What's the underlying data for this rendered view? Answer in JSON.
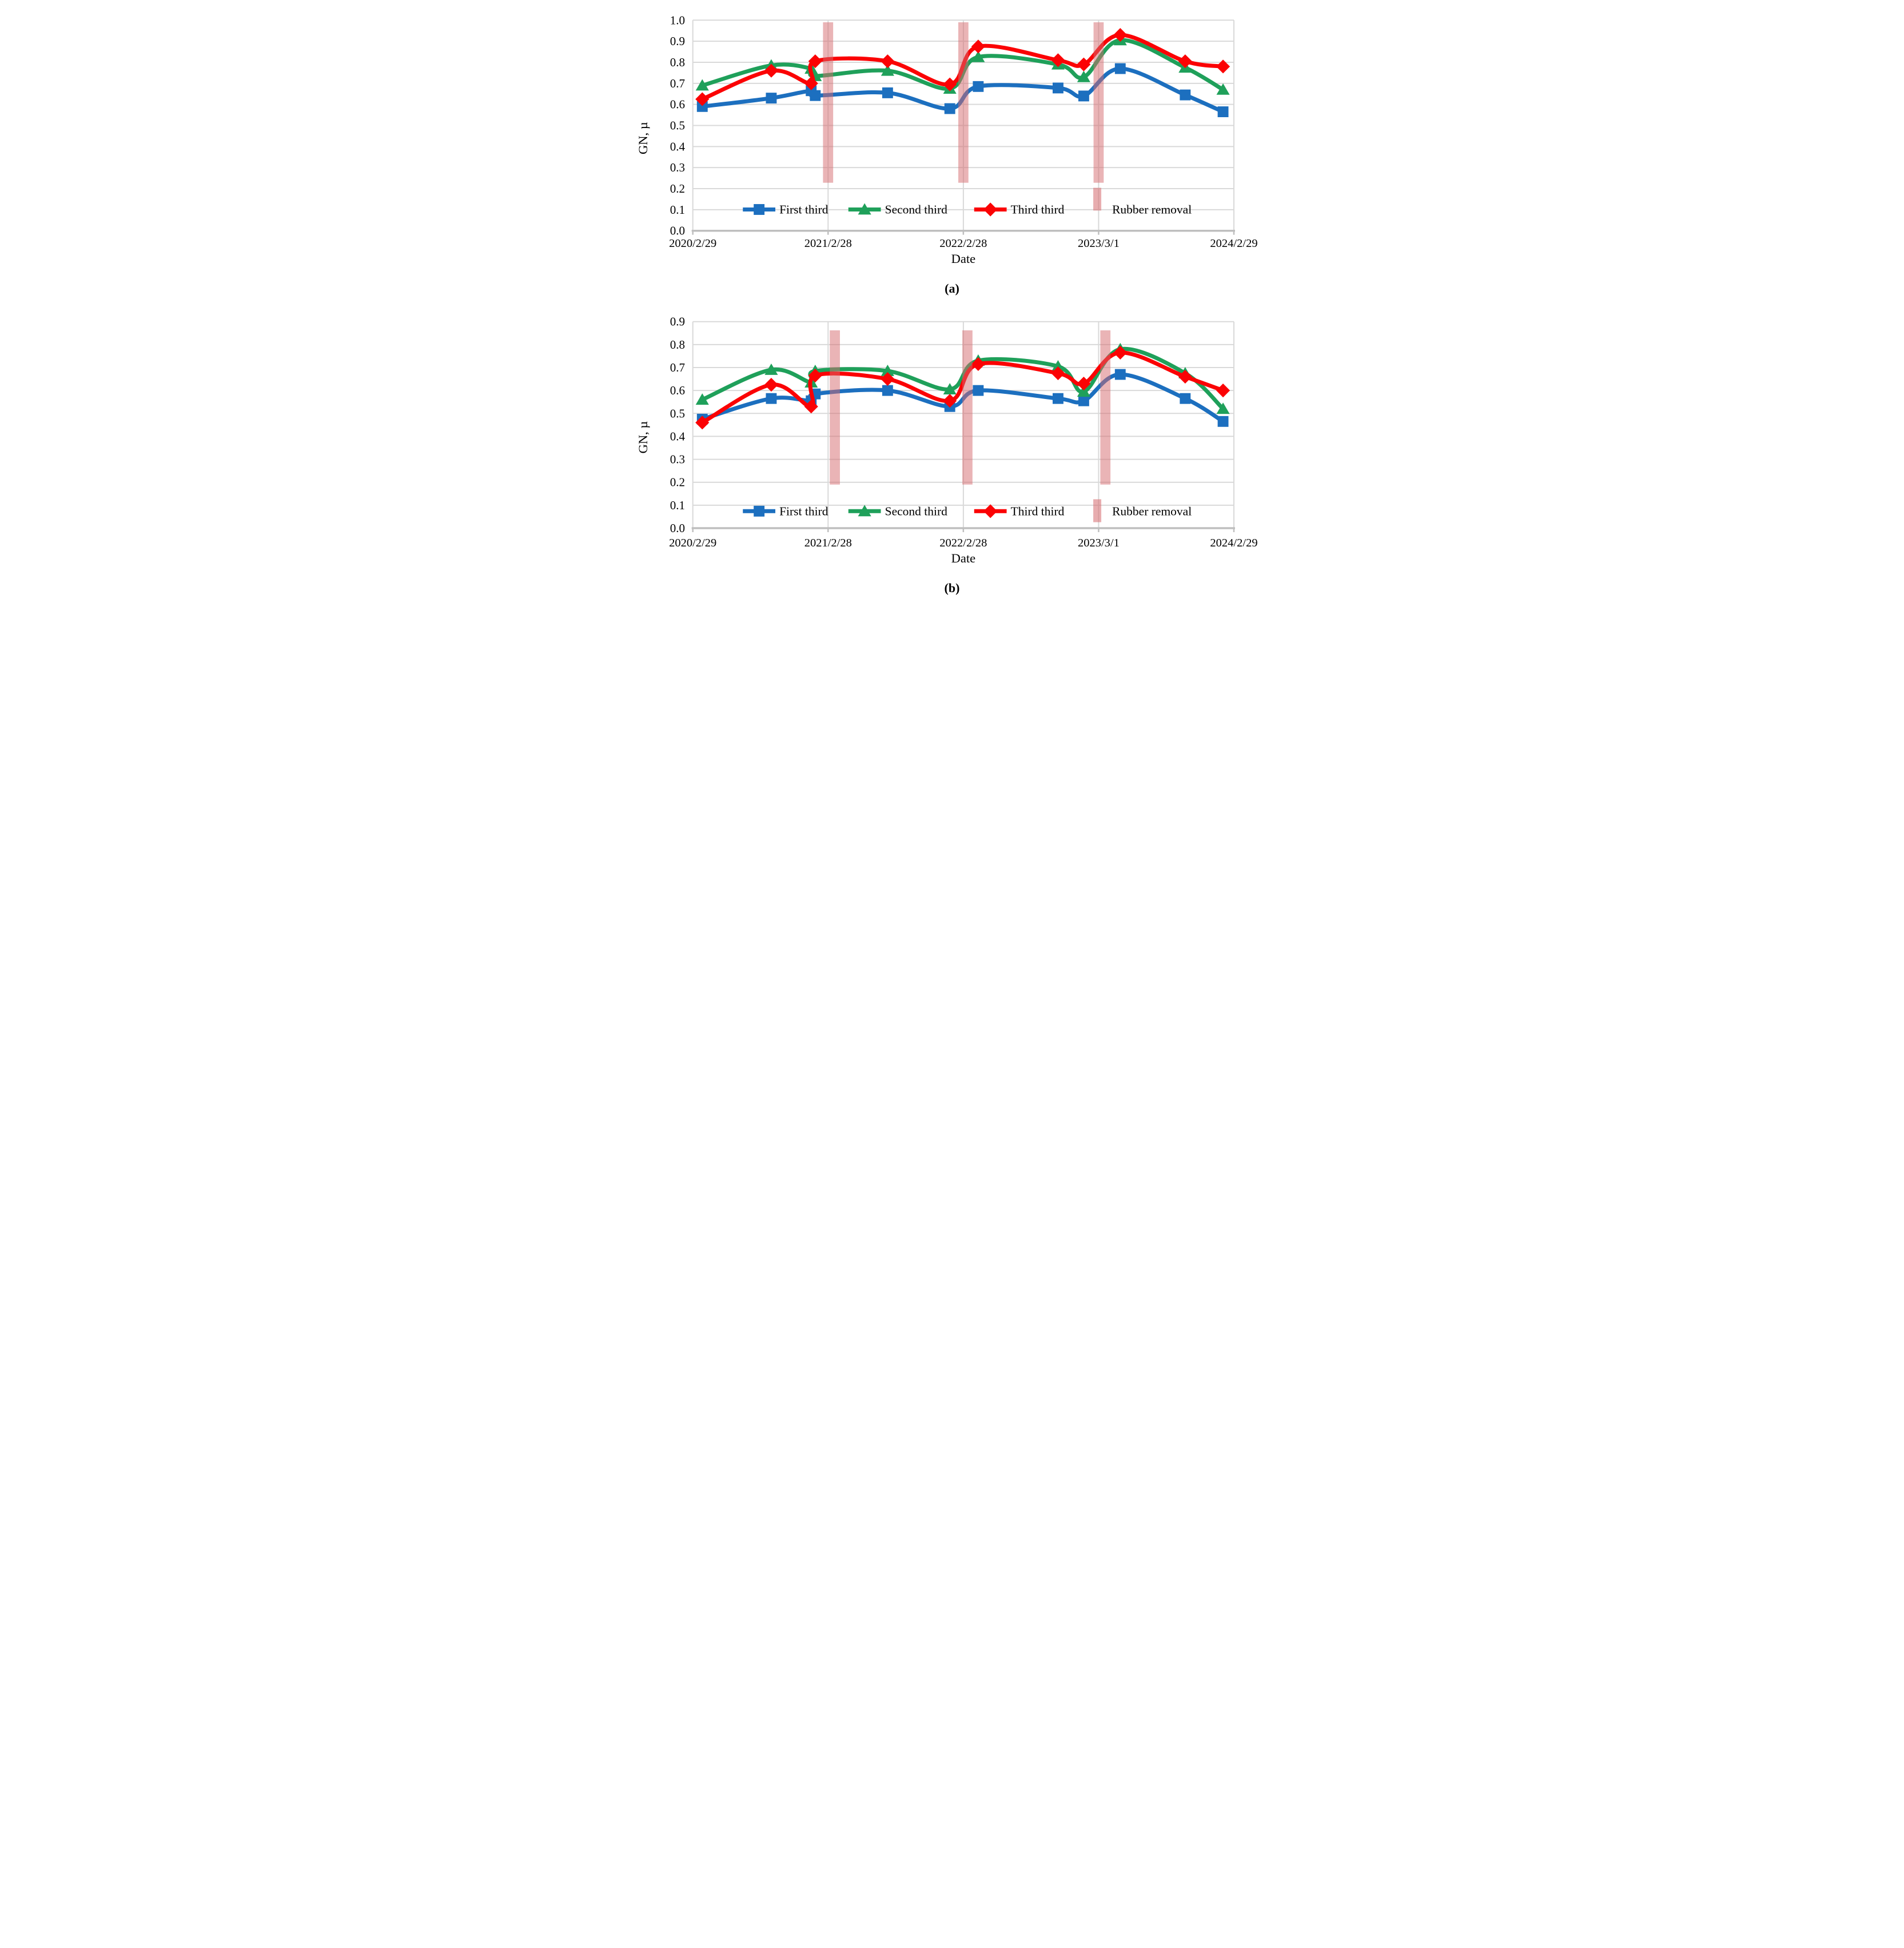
{
  "colors": {
    "blue": "#1C6FBF",
    "green": "#1FA05A",
    "red": "#FB0204",
    "bar_pink": "#D66A6D",
    "grid": "#D9D9D9",
    "axis": "#BFBFBF",
    "text": "#000000"
  },
  "captions": {
    "a": "(a)",
    "b": "(b)"
  },
  "chart_data": [
    {
      "id": "a",
      "type": "line",
      "caption": "(a)",
      "xlabel": "Date",
      "ylabel": "GN, µ",
      "x_unit": "years since 2020/2/29",
      "xlim": [
        0,
        4
      ],
      "ylim": [
        0,
        1.0
      ],
      "x_tick_values": [
        0,
        1,
        2,
        3,
        4
      ],
      "x_tick_labels": [
        "2020/2/29",
        "2021/2/28",
        "2022/2/28",
        "2023/3/1",
        "2024/2/29"
      ],
      "y_tick_labels": [
        "0.0",
        "0.1",
        "0.2",
        "0.3",
        "0.4",
        "0.5",
        "0.6",
        "0.7",
        "0.8",
        "0.9",
        "1.0"
      ],
      "grid": true,
      "legend_position": "inside-bottom",
      "x": [
        0.07,
        0.58,
        0.875,
        0.905,
        1.44,
        1.9,
        2.11,
        2.7,
        2.89,
        3.16,
        3.64,
        3.92
      ],
      "series": [
        {
          "name": "First third",
          "color_key": "blue",
          "marker": "square",
          "y": [
            0.59,
            0.63,
            0.665,
            0.642,
            0.655,
            0.58,
            0.685,
            0.678,
            0.64,
            0.77,
            0.645,
            0.565
          ]
        },
        {
          "name": "Second third",
          "color_key": "green",
          "marker": "triangle",
          "y": [
            0.69,
            0.785,
            0.77,
            0.735,
            0.76,
            0.675,
            0.825,
            0.79,
            0.73,
            0.905,
            0.775,
            0.67
          ]
        },
        {
          "name": "Third third",
          "color_key": "red",
          "marker": "diamond",
          "y": [
            0.625,
            0.76,
            0.7,
            0.805,
            0.805,
            0.695,
            0.875,
            0.81,
            0.79,
            0.93,
            0.805,
            0.78
          ]
        }
      ],
      "removal_bars": {
        "label": "Rubber removal",
        "positions": [
          1.0,
          2.0,
          3.0
        ],
        "width": 0.075,
        "y_bottom": 0.228,
        "y_top": 0.99
      },
      "legend": {
        "text_y": 0.101,
        "bar_center_y": 0.15,
        "bar_half_h": 0.054,
        "items_x": [
          0.37,
          1.15,
          2.08
        ],
        "label_dx": 0.27,
        "bar_x": 2.99,
        "bar_label_x": 3.1
      }
    },
    {
      "id": "b",
      "type": "line",
      "caption": "(b)",
      "xlabel": "Date",
      "ylabel": "GN, µ",
      "x_unit": "years since 2020/2/29",
      "xlim": [
        0,
        4
      ],
      "ylim": [
        0,
        0.9
      ],
      "x_tick_values": [
        0,
        1,
        2,
        3,
        4
      ],
      "x_tick_labels": [
        "2020/2/29",
        "2021/2/28",
        "2022/2/28",
        "2023/3/1",
        "2024/2/29"
      ],
      "y_tick_labels": [
        "0.0",
        "0.1",
        "0.2",
        "0.3",
        "0.4",
        "0.5",
        "0.6",
        "0.7",
        "0.8",
        "0.9"
      ],
      "grid": true,
      "legend_position": "inside-bottom",
      "x": [
        0.07,
        0.58,
        0.875,
        0.905,
        1.44,
        1.9,
        2.11,
        2.7,
        2.89,
        3.16,
        3.64,
        3.92
      ],
      "series": [
        {
          "name": "First third",
          "color_key": "blue",
          "marker": "square",
          "y": [
            0.475,
            0.565,
            0.555,
            0.585,
            0.6,
            0.53,
            0.6,
            0.565,
            0.555,
            0.67,
            0.565,
            0.465
          ]
        },
        {
          "name": "Second third",
          "color_key": "green",
          "marker": "triangle",
          "y": [
            0.56,
            0.69,
            0.635,
            0.685,
            0.685,
            0.605,
            0.73,
            0.705,
            0.595,
            0.78,
            0.675,
            0.52
          ]
        },
        {
          "name": "Third third",
          "color_key": "red",
          "marker": "diamond",
          "y": [
            0.46,
            0.625,
            0.53,
            0.665,
            0.65,
            0.555,
            0.715,
            0.675,
            0.63,
            0.765,
            0.66,
            0.6
          ]
        }
      ],
      "removal_bars": {
        "label": "Rubber removal",
        "positions": [
          1.05,
          2.03,
          3.05
        ],
        "width": 0.075,
        "y_bottom": 0.19,
        "y_top": 0.862
      },
      "legend": {
        "text_y": 0.074,
        "bar_center_y": 0.076,
        "bar_half_h": 0.05,
        "items_x": [
          0.37,
          1.15,
          2.08
        ],
        "label_dx": 0.27,
        "bar_x": 2.99,
        "bar_label_x": 3.1
      }
    }
  ]
}
